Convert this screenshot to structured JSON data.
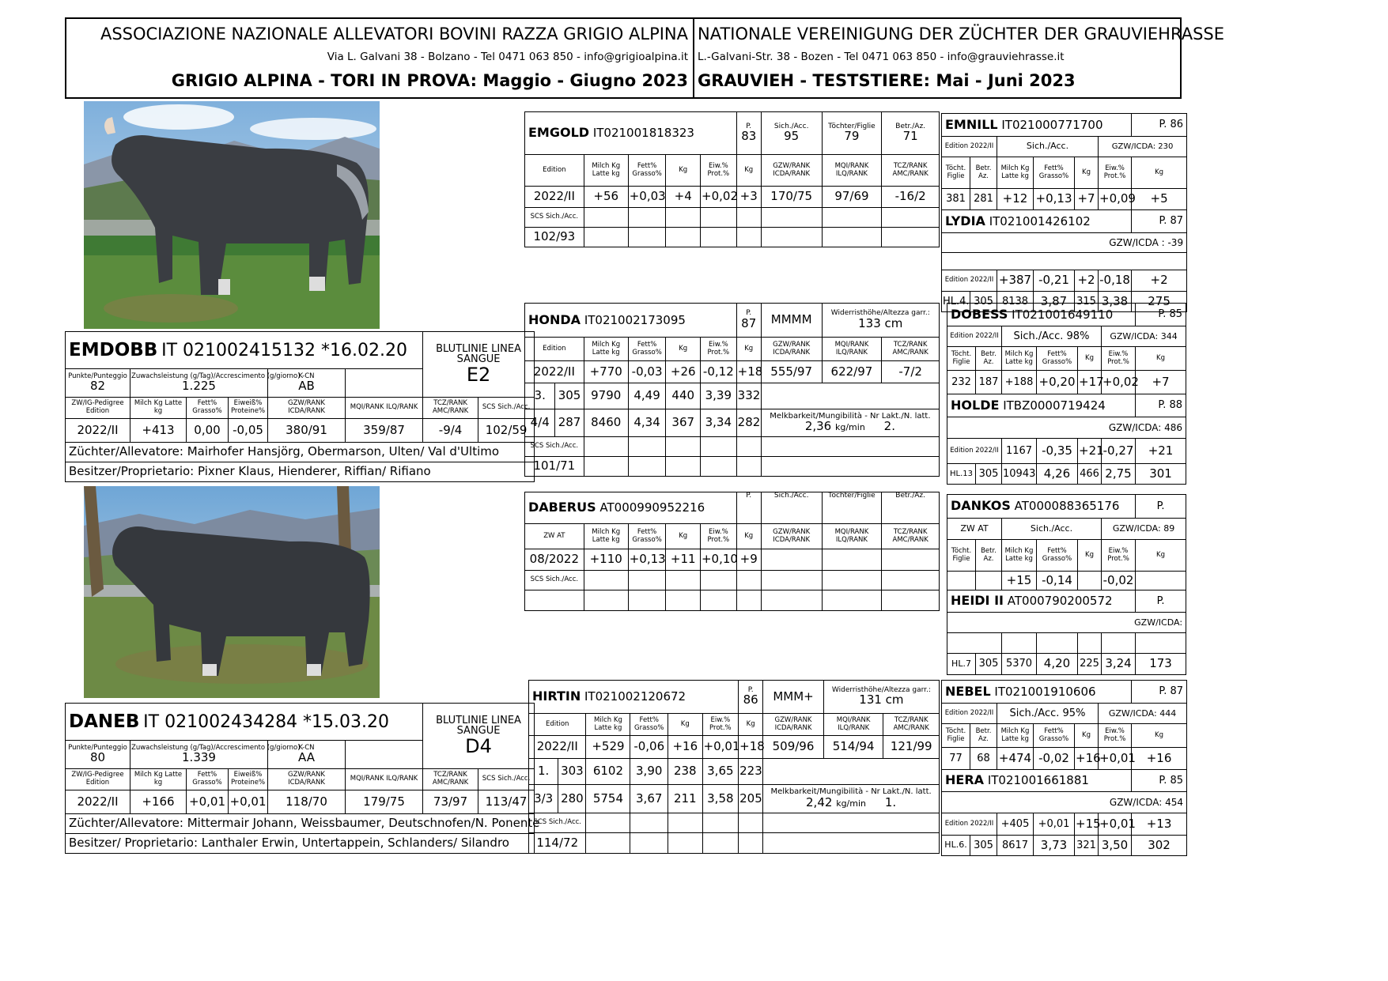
{
  "header": {
    "association_it": "ASSOCIAZIONE NAZIONALE ALLEVATORI BOVINI RAZZA GRIGIO ALPINA",
    "address_it": "Via L. Galvani 38 - Bolzano - Tel 0471 063 850 - info@grigioalpina.it",
    "title_it": "GRIGIO ALPINA - TORI IN PROVA:  Maggio - Giugno 2023",
    "association_de": "NATIONALE VEREINIGUNG DER ZÜCHTER DER GRAUVIEHRASSE",
    "address_de": "L.-Galvani-Str. 38 - Bozen - Tel 0471 063 850 - info@grauviehrasse.it",
    "title_de": "GRAUVIEH - TESTSTIERE:  Mai - Juni 2023"
  },
  "lbl": {
    "p": "P.",
    "sich": "Sich./Acc.",
    "toechter": "Töchter/Figlie",
    "betr": "Betr./Az.",
    "edition": "Edition",
    "milch": "Milch Kg Latte kg",
    "fett": "Fett% Grasso%",
    "kg": "Kg",
    "eiw": "Eiw.% Prot.%",
    "czw": "GZW/RANK ICDA/RANK",
    "mqi": "MQI/RANK ILQ/RANK",
    "tcz": "TCZ/RANK AMC/RANK",
    "scs": "SCS Sich./Acc.",
    "toecht_figlie": "Töcht. Figlie",
    "betr_az": "Betr. Az.",
    "gzw_icda": "GZW/ICDA:",
    "zwat": "ZW AT",
    "punkte": "Punkte/Punteggio",
    "zuwachs": "Zuwachsleistung (g/Tag)/Accrescimento (g/giorno)",
    "kcn": "K-CN",
    "blutlinie": "BLUTLINIE LINEA SANGUE",
    "zwig": "ZW/IG-Pedigree Edition",
    "eiweiss": "Eiweiß% Proteine%",
    "widerrist": "Widerristhöhe/Altezza garr.:",
    "melk": "Melkbarkeit/Mungibilità - Nr Lakt./N. latt.",
    "kgmin": "kg/min",
    "scs_sich": "SCS Sich./Acc."
  },
  "emdobb": {
    "name": "EMDOBB",
    "id": "IT 021002415132 *16.02.20",
    "blutlinie": "E2",
    "punkte": "82",
    "zuwachs": "1.225",
    "kcn": "AB",
    "row": [
      "2022/II",
      "+413",
      "0,00",
      "-0,05",
      "380/91",
      "359/87",
      "-9/4",
      "102/59"
    ],
    "zuechter": "Züchter/Allevatore:  Mairhofer Hansjörg, Obermarson, Ulten/ Val d'Ultimo",
    "besitzer": "Besitzer/Proprietario: Pixner Klaus, Hienderer, Riffian/ Rifiano"
  },
  "daneb": {
    "name": "DANEB",
    "id": "IT 021002434284 *15.03.20",
    "blutlinie": "D4",
    "punkte": "80",
    "zuwachs": "1.339",
    "kcn": "AA",
    "row": [
      "2022/II",
      "+166",
      "+0,01",
      "+0,01",
      "118/70",
      "179/75",
      "73/97",
      "113/47"
    ],
    "zuechter": "Züchter/Allevatore: Mittermair Johann, Weissbaumer, Deutschnofen/N. Ponente",
    "besitzer": "Besitzer/ Proprietario: Lanthaler Erwin, Untertappein, Schlanders/ Silandro"
  },
  "emgold": {
    "name": "EMGOLD",
    "id": "IT021001818323",
    "p": "83",
    "sich": "95",
    "toechter": "79",
    "betr": "71",
    "row": [
      "2022/II",
      "+56",
      "+0,03",
      "+4",
      "+0,02",
      "+3",
      "170/75",
      "97/69",
      "-16/2"
    ],
    "scs": "102/93"
  },
  "honda": {
    "name": "HONDA",
    "id": "IT021002173095",
    "p": "87",
    "type": "MMMM",
    "height": "133 cm",
    "row": [
      "2022/II",
      "+770",
      "-0,03",
      "+26",
      "-0,12",
      "+18",
      "555/97",
      "622/97",
      "-7/2"
    ],
    "l1": [
      "3.",
      "305",
      "9790",
      "4,49",
      "440",
      "3,39",
      "332"
    ],
    "l2": [
      "4/4",
      "287",
      "8460",
      "4,34",
      "367",
      "3,34",
      "282"
    ],
    "melk_val": "2,36",
    "lakt": "2.",
    "scs": "101/71"
  },
  "daberus": {
    "name": "DABERUS",
    "id": "AT000990952216",
    "row": [
      "08/2022",
      "+110",
      "+0,13",
      "+11",
      "+0,10",
      "+9"
    ]
  },
  "hirtin": {
    "name": "HIRTIN",
    "id": "IT021002120672",
    "p": "86",
    "type": "MMM+",
    "height": "131 cm",
    "row": [
      "2022/II",
      "+529",
      "-0,06",
      "+16",
      "+0,01",
      "+18",
      "509/96",
      "514/94",
      "121/99"
    ],
    "l1": [
      "1.",
      "303",
      "6102",
      "3,90",
      "238",
      "3,65",
      "223"
    ],
    "l2": [
      "3/3",
      "280",
      "5754",
      "3,67",
      "211",
      "3,58",
      "205"
    ],
    "melk_val": "2,42",
    "lakt": "1.",
    "scs": "114/72"
  },
  "emnill": {
    "name": "EMNILL",
    "id": "IT021000771700",
    "p": "P. 86",
    "edition": "Edition 2022/II",
    "sich": "Sich./Acc.",
    "gzw": "GZW/ICDA: 230",
    "row": [
      "381",
      "281",
      "+12",
      "+0,13",
      "+7",
      "+0,09",
      "+5"
    ]
  },
  "lydia": {
    "name": "LYDIA",
    "id": "IT021001426102",
    "p": "P. 87",
    "gzw": "GZW/ICDA : -39",
    "row": [
      "Edition 2022/II",
      "+387",
      "-0,21",
      "+2",
      "-0,18",
      "+2"
    ],
    "hl": [
      "HL.4.",
      "305",
      "8138",
      "3,87",
      "315",
      "3,38",
      "275"
    ]
  },
  "dobess": {
    "name": "DOBESS",
    "id": "IT021001649110",
    "p": "P. 85",
    "edition": "Edition 2022/II",
    "sich": "Sich./Acc. 98%",
    "gzw": "GZW/ICDA: 344",
    "row": [
      "232",
      "187",
      "+188",
      "+0,20",
      "+17",
      "+0,02",
      "+7"
    ]
  },
  "holde": {
    "name": "HOLDE",
    "id": "ITBZ0000719424",
    "p": "P. 88",
    "gzw": "GZW/ICDA: 486",
    "row": [
      "Edition 2022/II",
      "1167",
      "-0,35",
      "+21",
      "-0,27",
      "+21"
    ],
    "hl": [
      "HL.13",
      "305",
      "10943",
      "4,26",
      "466",
      "2,75",
      "301"
    ]
  },
  "dankos": {
    "name": "DANKOS",
    "id": "AT000088365176",
    "p": "P.",
    "zw": "ZW AT",
    "sich": "Sich./Acc.",
    "gzw": "GZW/ICDA: 89",
    "row": [
      "",
      "",
      "+15",
      "-0,14",
      "",
      "-0,02",
      ""
    ]
  },
  "heidi": {
    "name": "HEIDI II",
    "id": "AT000790200572",
    "p": "P.",
    "gzw": "GZW/ICDA:",
    "hl": [
      "HL.7",
      "305",
      "5370",
      "4,20",
      "225",
      "3,24",
      "173"
    ]
  },
  "nebel": {
    "name": "NEBEL",
    "id": "IT021001910606",
    "p": "P. 87",
    "edition": "Edition 2022/II",
    "sich": "Sich./Acc. 95%",
    "gzw": "GZW/ICDA: 444",
    "row": [
      "77",
      "68",
      "+474",
      "-0,02",
      "+16",
      "+0,01",
      "+16"
    ]
  },
  "hera": {
    "name": "HERA",
    "id": "IT021001661881",
    "p": "P. 85",
    "gzw": "GZW/ICDA: 454",
    "row": [
      "Edition 2022/II",
      "+405",
      "+0,01",
      "+15",
      "+0,01",
      "+13"
    ],
    "hl": [
      "HL.6.",
      "305",
      "8617",
      "3,73",
      "321",
      "3,50",
      "302"
    ]
  }
}
